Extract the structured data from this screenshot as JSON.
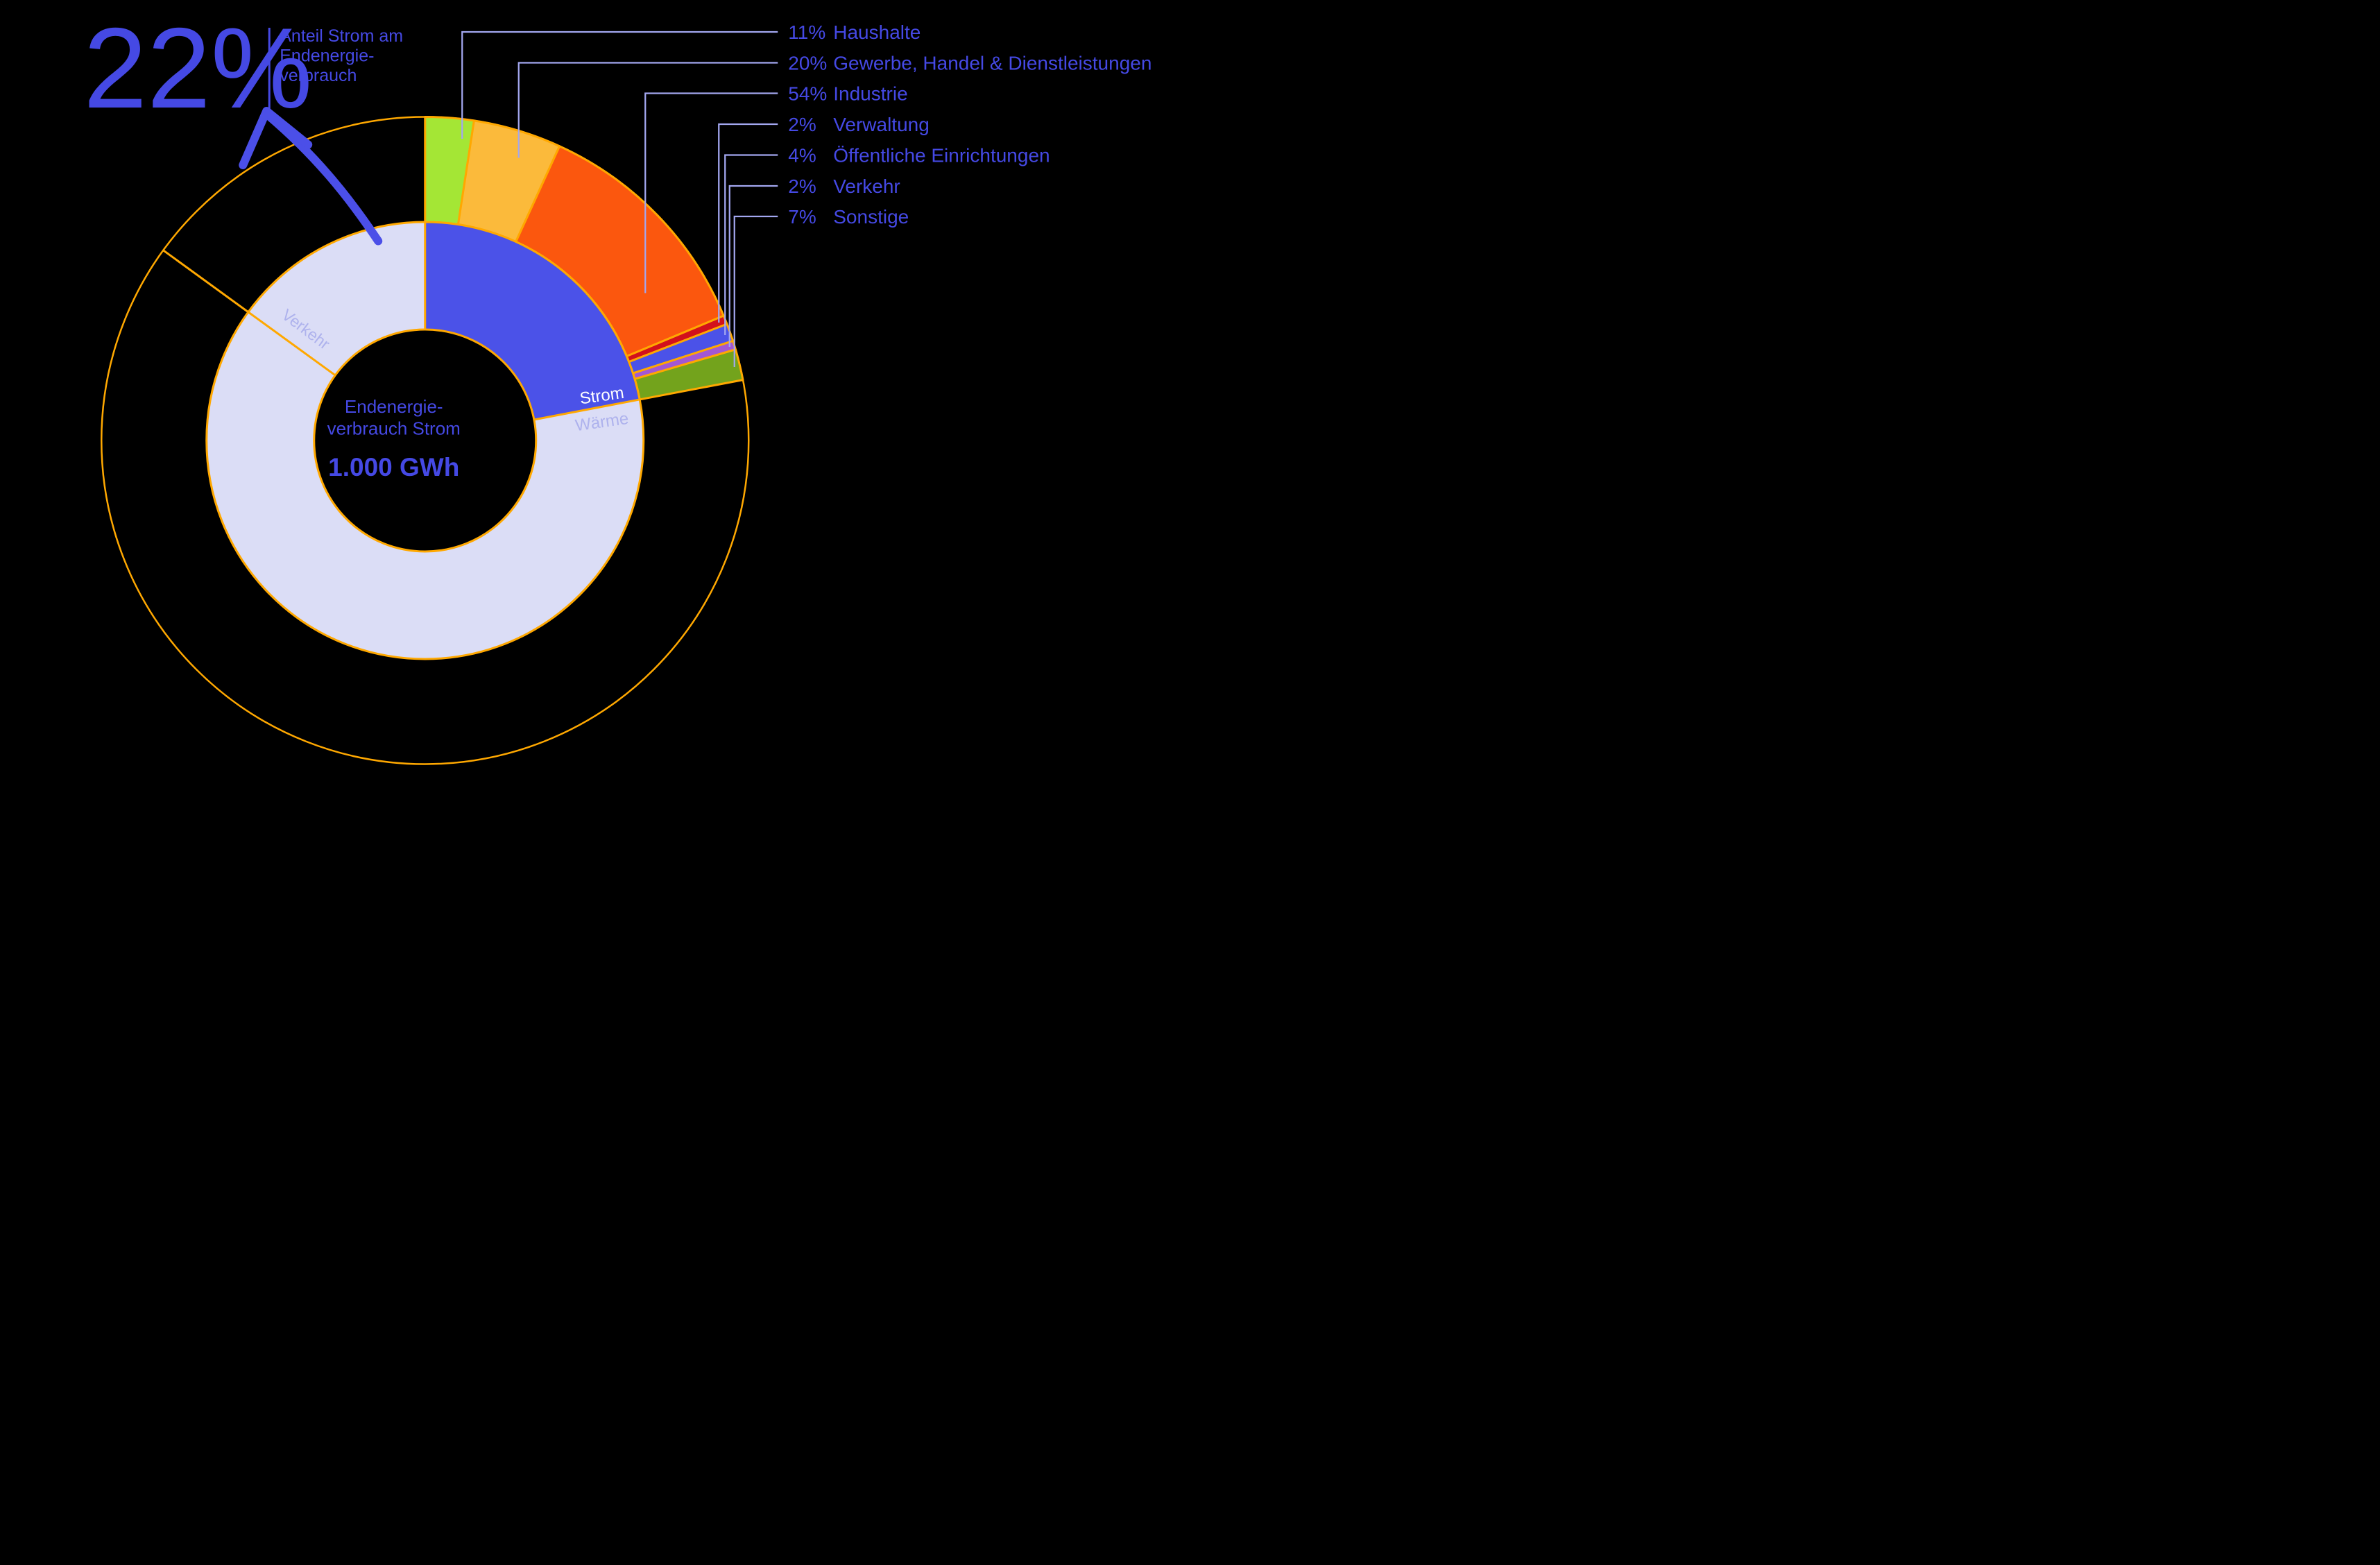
{
  "callout": {
    "value": "22%",
    "label_lines": [
      "Anteil Strom am",
      "Endenergie-",
      "verbrauch"
    ]
  },
  "center": {
    "line1": "Endenergie-",
    "line2": "verbrauch Strom",
    "value": "1.000 GWh"
  },
  "colors": {
    "background": "#000000",
    "ring_stroke": "#FFA800",
    "leader_line": "#A3A7F0",
    "text_blue": "#4549E4",
    "label_muted": "#AEB2ED",
    "strom_label": "#FFFFFF",
    "lavender": "#DBDDF6",
    "arrow_blue": "#4B4FE8"
  },
  "chart_data": {
    "type": "pie",
    "variant": "nested-donut-sunburst",
    "center_label": "Endenergieverbrauch Strom",
    "center_value": "1.000 GWh",
    "callout": {
      "value_pct": 22,
      "label": "Anteil Strom am Endenergieverbrauch"
    },
    "legend_position": "top-right",
    "inner_ring": {
      "description": "Endenergieverbrauch nach Verwendung (Anteil am Kreis)",
      "segments": [
        {
          "label": "Strom",
          "value_pct": 22,
          "color": "#4B52E8",
          "label_color": "#FFFFFF"
        },
        {
          "label": "Wärme",
          "value_pct": 63,
          "estimated": true,
          "color": "#DBDDF6",
          "label_color": "#AEB2ED"
        },
        {
          "label": "Verkehr",
          "value_pct": 15,
          "estimated": true,
          "color": "#DBDDF6",
          "label_color": "#AEB2ED"
        }
      ]
    },
    "outer_ring": {
      "description": "Endenergieverbrauch Strom nach Sektoren (Anteile des Strom-Sektors)",
      "segments": [
        {
          "pct": 11,
          "label": "Haushalte",
          "color": "#A4E635"
        },
        {
          "pct": 20,
          "label": "Gewerbe, Handel & Dienstleistungen",
          "color": "#FBBA3B"
        },
        {
          "pct": 54,
          "label": "Industrie",
          "color": "#FB570E"
        },
        {
          "pct": 2,
          "label": "Verwaltung",
          "color": "#D2111C"
        },
        {
          "pct": 4,
          "label": "Öffentliche Einrichtungen",
          "color": "#4B52E8"
        },
        {
          "pct": 2,
          "label": "Verkehr",
          "color": "#A258D4"
        },
        {
          "pct": 7,
          "label": "Sonstige",
          "color": "#73A31C"
        }
      ]
    }
  }
}
